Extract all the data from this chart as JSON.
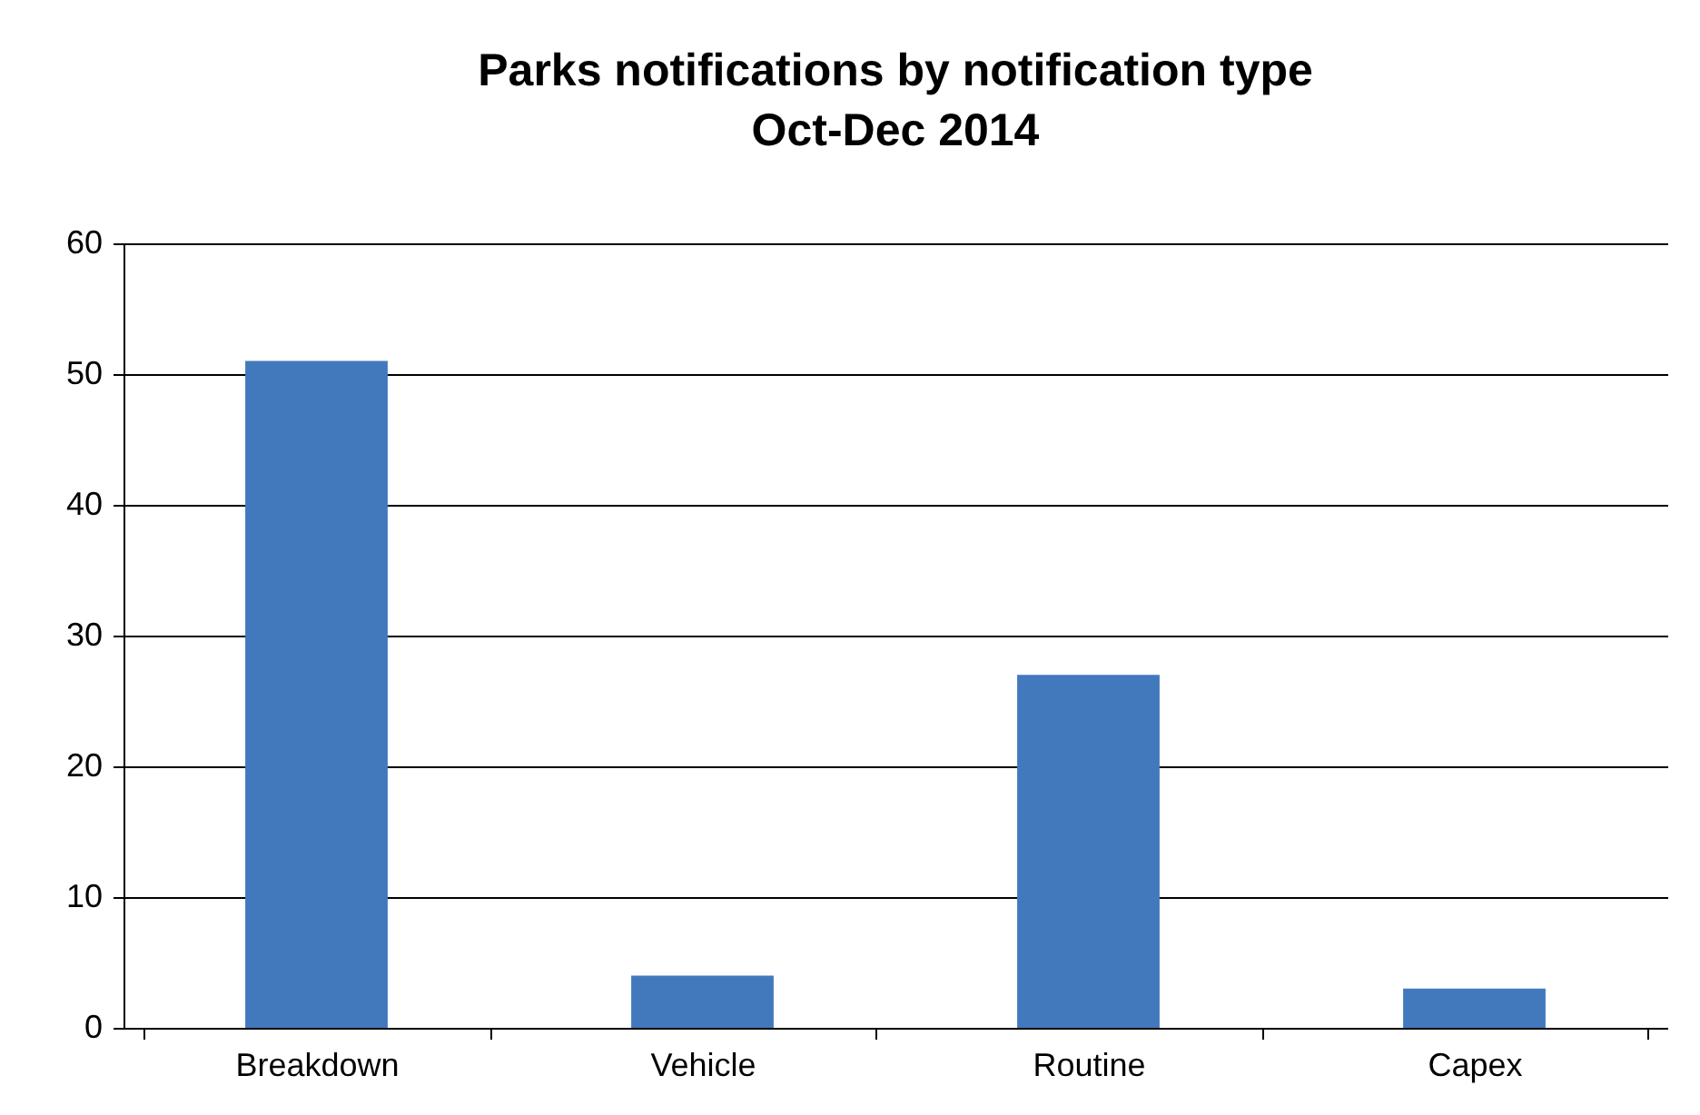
{
  "chart_data": {
    "type": "bar",
    "title": "Parks notifications by notification type\nOct-Dec  2014",
    "categories": [
      "Breakdown",
      "Vehicle",
      "Routine",
      "Capex"
    ],
    "values": [
      51,
      4,
      27,
      3
    ],
    "color": "#4279bd",
    "ylim": [
      0,
      60
    ],
    "yticks": [
      0,
      10,
      20,
      30,
      40,
      50,
      60
    ],
    "grid": "y"
  }
}
